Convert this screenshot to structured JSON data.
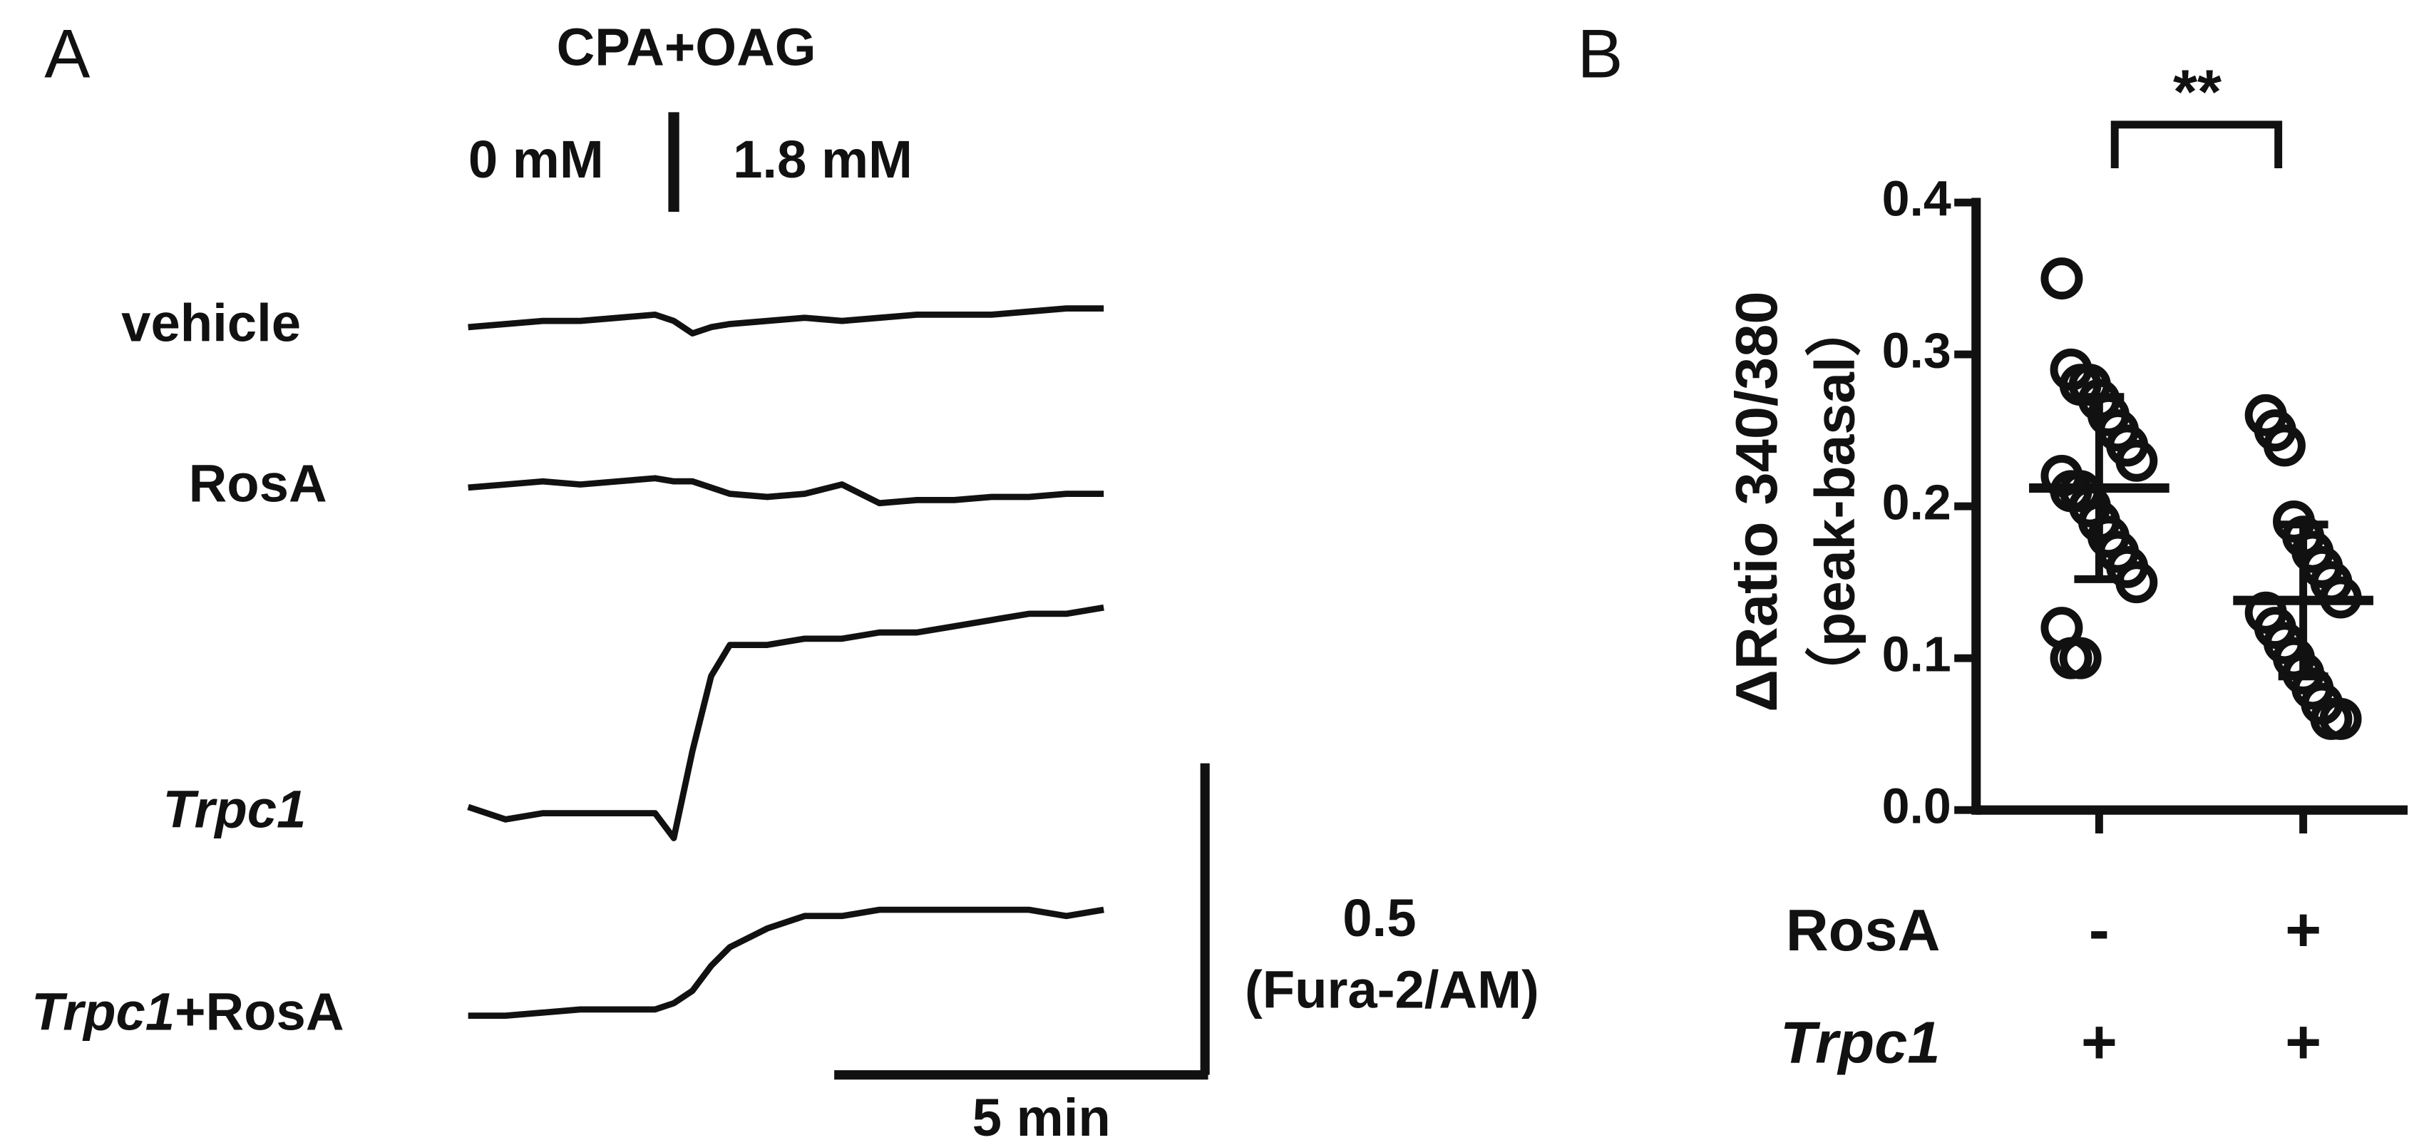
{
  "chart_data": [
    {
      "type": "traces",
      "panel": "A",
      "stimulus": {
        "x": 2.75,
        "label": "CPA+OAG",
        "before": "0 mM",
        "after": "1.8 mM"
      },
      "x": [
        0,
        0.5,
        1,
        1.5,
        2,
        2.5,
        2.75,
        3,
        3.25,
        3.5,
        4,
        4.5,
        5,
        5.5,
        6,
        6.5,
        7,
        7.5,
        8,
        8.5
      ],
      "series": [
        {
          "name": "vehicle",
          "color": "#111111",
          "values": [
            0,
            0.005,
            0.01,
            0.01,
            0.015,
            0.02,
            0.01,
            -0.01,
            0,
            0.005,
            0.01,
            0.015,
            0.01,
            0.015,
            0.02,
            0.02,
            0.02,
            0.025,
            0.03,
            0.03
          ]
        },
        {
          "name": "RosA",
          "color": "#111111",
          "values": [
            0,
            0.005,
            0.01,
            0.005,
            0.01,
            0.015,
            0.01,
            0.01,
            0,
            -0.01,
            -0.015,
            -0.01,
            0.005,
            -0.025,
            -0.02,
            -0.02,
            -0.015,
            -0.015,
            -0.01,
            -0.01
          ]
        },
        {
          "name": "Trpc1",
          "color": "#111111",
          "values": [
            0.01,
            -0.01,
            0,
            0,
            0,
            0,
            -0.04,
            0.1,
            0.22,
            0.27,
            0.27,
            0.28,
            0.28,
            0.29,
            0.29,
            0.3,
            0.31,
            0.32,
            0.32,
            0.33
          ]
        },
        {
          "name": "Trpc1+RosA",
          "color": "#111111",
          "values": [
            0,
            0,
            0.005,
            0.01,
            0.01,
            0.01,
            0.02,
            0.04,
            0.08,
            0.11,
            0.14,
            0.16,
            0.16,
            0.17,
            0.17,
            0.17,
            0.17,
            0.17,
            0.16,
            0.17
          ]
        }
      ],
      "scale_bar": {
        "y": 0.5,
        "y_unit": "(Fura-2/AM)",
        "x": 5,
        "x_label": "5 min"
      }
    },
    {
      "type": "dotplot",
      "panel": "B",
      "y_label": "ΔRatio 340/380",
      "y_sublabel": "（peak-basal）",
      "ylim": [
        0,
        0.4
      ],
      "yticks": [
        {
          "value": 0,
          "label": "0.0"
        },
        0.1,
        0.2,
        0.3,
        0.4
      ],
      "factors": [
        {
          "name": "RosA",
          "levels": [
            "-",
            "+"
          ]
        },
        {
          "name": "Trpc1",
          "levels": [
            "+",
            "+"
          ]
        }
      ],
      "series": [
        {
          "values": [
            0.35,
            0.29,
            0.28,
            0.28,
            0.27,
            0.26,
            0.25,
            0.24,
            0.23,
            0.22,
            0.21,
            0.21,
            0.2,
            0.19,
            0.18,
            0.17,
            0.16,
            0.15,
            0.12,
            0.1,
            0.1
          ],
          "mean": 0.212,
          "sd": 0.06
        },
        {
          "values": [
            0.26,
            0.25,
            0.24,
            0.19,
            0.18,
            0.17,
            0.16,
            0.15,
            0.14,
            0.13,
            0.12,
            0.11,
            0.1,
            0.09,
            0.08,
            0.07,
            0.06,
            0.06
          ],
          "mean": 0.138,
          "sd": 0.05
        }
      ],
      "significance": "**"
    }
  ]
}
